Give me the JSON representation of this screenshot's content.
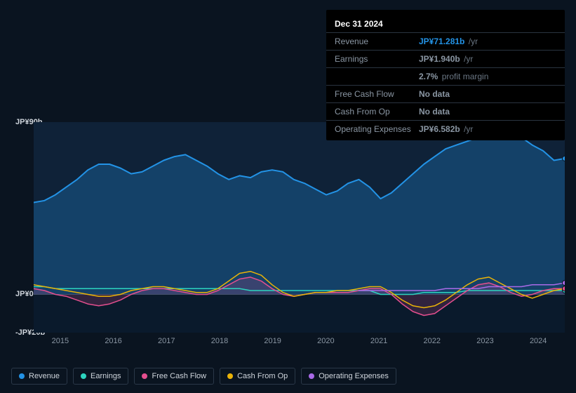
{
  "info_panel": {
    "date": "Dec 31 2024",
    "rows": [
      {
        "label": "Revenue",
        "value": "JP¥71.281b",
        "unit": "/yr",
        "color": "#2393e6"
      },
      {
        "label": "Earnings",
        "value": "JP¥1.940b",
        "unit": "/yr",
        "color": "#2dd4bf"
      },
      {
        "label": "",
        "value": "2.7%",
        "unit": "profit margin",
        "color": "#ffffff"
      },
      {
        "label": "Free Cash Flow",
        "value": "No data",
        "unit": "",
        "color": "#6a7683"
      },
      {
        "label": "Cash From Op",
        "value": "No data",
        "unit": "",
        "color": "#6a7683"
      },
      {
        "label": "Operating Expenses",
        "value": "JP¥6.582b",
        "unit": "/yr",
        "color": "#a96ae8"
      }
    ]
  },
  "chart": {
    "type": "area-line",
    "background_color": "#0a1420",
    "plot_bg_top": "#0f2238",
    "plot_bg_bottom": "#0a1a2c",
    "ylim": [
      -20,
      90
    ],
    "y_ticks": [
      {
        "pos": 90,
        "label": "JP¥90b"
      },
      {
        "pos": 0,
        "label": "JP¥0"
      },
      {
        "pos": -20,
        "label": "-JP¥20b"
      }
    ],
    "x_labels": [
      "2015",
      "2016",
      "2017",
      "2018",
      "2019",
      "2020",
      "2021",
      "2022",
      "2023",
      "2024"
    ],
    "grid_color": "#1a2a3c",
    "zero_line_color": "#3a4858",
    "series": {
      "revenue": {
        "label": "Revenue",
        "color": "#2393e6",
        "fill": "rgba(35,147,230,0.28)",
        "width": 2,
        "points": [
          48,
          49,
          52,
          56,
          60,
          65,
          68,
          68,
          66,
          63,
          64,
          67,
          70,
          72,
          73,
          70,
          67,
          63,
          60,
          62,
          61,
          64,
          65,
          64,
          60,
          58,
          55,
          52,
          54,
          58,
          60,
          56,
          50,
          53,
          58,
          63,
          68,
          72,
          76,
          78,
          80,
          82,
          84,
          86,
          85,
          82,
          78,
          75,
          70,
          71
        ]
      },
      "earnings": {
        "label": "Earnings",
        "color": "#2dd4bf",
        "fill": "none",
        "width": 1.5,
        "points": [
          4,
          4,
          3,
          3,
          3,
          3,
          3,
          3,
          3,
          3,
          3,
          3,
          3,
          3,
          3,
          3,
          3,
          3,
          3,
          3,
          2,
          2,
          2,
          2,
          2,
          2,
          2,
          2,
          2,
          2,
          2,
          2,
          0,
          0,
          0,
          0,
          1,
          1,
          1,
          1,
          2,
          2,
          2,
          2,
          2,
          2,
          2,
          2,
          2,
          2
        ]
      },
      "fcf": {
        "label": "Free Cash Flow",
        "color": "#e54f8f",
        "fill": "rgba(229,79,143,0.18)",
        "width": 1.5,
        "points": [
          3,
          2,
          0,
          -1,
          -3,
          -5,
          -6,
          -5,
          -3,
          0,
          2,
          3,
          3,
          2,
          1,
          0,
          0,
          2,
          5,
          8,
          9,
          7,
          3,
          0,
          -1,
          0,
          1,
          1,
          1,
          1,
          2,
          3,
          3,
          0,
          -5,
          -9,
          -11,
          -10,
          -6,
          -2,
          2,
          5,
          6,
          4,
          1,
          -1,
          0,
          2,
          3,
          3
        ]
      },
      "cfo": {
        "label": "Cash From Op",
        "color": "#eab308",
        "fill": "none",
        "width": 1.5,
        "points": [
          5,
          4,
          3,
          2,
          1,
          0,
          -1,
          -1,
          0,
          2,
          3,
          4,
          4,
          3,
          2,
          1,
          1,
          3,
          7,
          11,
          12,
          10,
          5,
          1,
          -1,
          0,
          1,
          1,
          2,
          2,
          3,
          4,
          4,
          1,
          -3,
          -6,
          -7,
          -6,
          -3,
          1,
          5,
          8,
          9,
          6,
          3,
          0,
          -2,
          0,
          2,
          3
        ]
      },
      "opex": {
        "label": "Operating Expenses",
        "color": "#a96ae8",
        "fill": "none",
        "width": 1.5,
        "points_from": 30,
        "points": [
          2,
          2,
          2,
          2,
          2,
          2,
          2,
          2,
          3,
          3,
          3,
          3,
          4,
          4,
          4,
          4,
          5,
          5,
          5,
          6
        ]
      }
    },
    "legend_order": [
      "revenue",
      "earnings",
      "fcf",
      "cfo",
      "opex"
    ]
  }
}
